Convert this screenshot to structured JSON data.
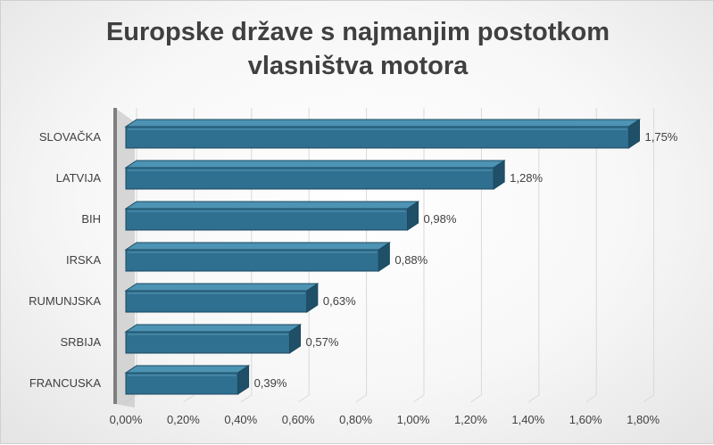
{
  "chart_data": {
    "type": "bar",
    "orientation": "horizontal",
    "title": "Europske  države s najmanjim postotkom\nvlasništva motora",
    "categories": [
      "SLOVAČKA",
      "LATVIJA",
      "BIH",
      "IRSKA",
      "RUMUNJSKA",
      "SRBIJA",
      "FRANCUSKA"
    ],
    "values": [
      1.75,
      1.28,
      0.98,
      0.88,
      0.63,
      0.57,
      0.39
    ],
    "data_labels": [
      "1,75%",
      "1,28%",
      "0,98%",
      "0,88%",
      "0,63%",
      "0,57%",
      "0,39%"
    ],
    "x_ticks": [
      "0,00%",
      "0,20%",
      "0,40%",
      "0,60%",
      "0,80%",
      "1,00%",
      "1,20%",
      "1,40%",
      "1,60%",
      "1,80%"
    ],
    "xlim": [
      0,
      1.8
    ],
    "xlabel": "",
    "ylabel": "",
    "grid": true,
    "legend": "none",
    "colors": {
      "bar_front": "#2f6f8f",
      "bar_top": "#4d93b3",
      "bar_side": "#1f5068",
      "bar_edge": "#1b4a61",
      "axis_wall": "#7f7f7f",
      "text": "#404040"
    }
  }
}
